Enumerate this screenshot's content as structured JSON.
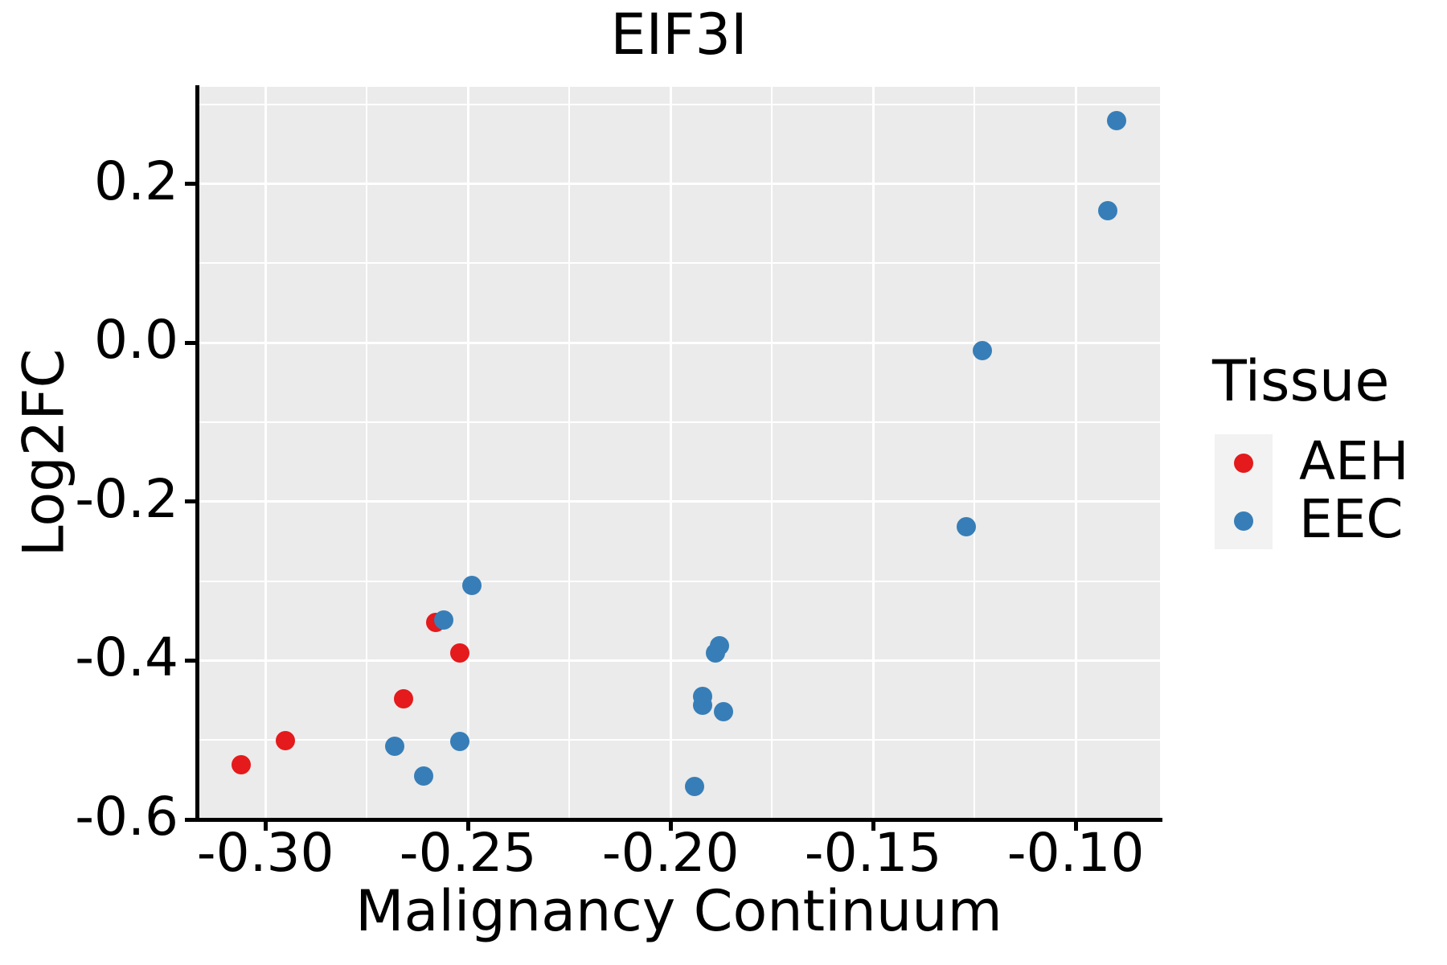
{
  "title": "EIF3I",
  "axes": {
    "x_label": "Malignancy Continuum",
    "y_label": "Log2FC"
  },
  "legend": {
    "title": "Tissue",
    "items": [
      {
        "label": "AEH",
        "color": "#E41A1C"
      },
      {
        "label": "EEC",
        "color": "#377EB8"
      }
    ]
  },
  "style": {
    "panel_bg": "#EBEBEB",
    "grid_color": "#FFFFFF",
    "legend_key_bg": "#F2F2F2",
    "axis_color": "#000000",
    "aeh_color": "#E41A1C",
    "eec_color": "#377EB8"
  },
  "chart_data": {
    "type": "scatter",
    "title": "EIF3I",
    "xlabel": "Malignancy Continuum",
    "ylabel": "Log2FC",
    "xlim": [
      -0.3167,
      -0.0792
    ],
    "ylim": [
      -0.6,
      0.322
    ],
    "grid": true,
    "legend_position": "right",
    "x_major_ticks": [
      -0.3,
      -0.25,
      -0.2,
      -0.15,
      -0.1
    ],
    "x_tick_labels": [
      "-0.30",
      "-0.25",
      "-0.20",
      "-0.15",
      "-0.10"
    ],
    "x_minor_ticks": [
      -0.275,
      -0.225,
      -0.175,
      -0.125
    ],
    "y_major_ticks": [
      0.2,
      0.0,
      -0.2,
      -0.4,
      -0.6
    ],
    "y_tick_labels": [
      "0.2",
      "0.0",
      "-0.2",
      "-0.4",
      "-0.6"
    ],
    "y_minor_ticks": [
      0.3,
      0.1,
      -0.1,
      -0.3,
      -0.5
    ],
    "series": [
      {
        "name": "AEH",
        "color": "#E41A1C",
        "points": [
          [
            -0.306,
            -0.531
          ],
          [
            -0.295,
            -0.501
          ],
          [
            -0.266,
            -0.448
          ],
          [
            -0.258,
            -0.352
          ],
          [
            -0.252,
            -0.39
          ]
        ]
      },
      {
        "name": "EEC",
        "color": "#377EB8",
        "points": [
          [
            -0.268,
            -0.508
          ],
          [
            -0.261,
            -0.545
          ],
          [
            -0.252,
            -0.502
          ],
          [
            -0.256,
            -0.349
          ],
          [
            -0.249,
            -0.305
          ],
          [
            -0.189,
            -0.391
          ],
          [
            -0.188,
            -0.381
          ],
          [
            -0.192,
            -0.445
          ],
          [
            -0.192,
            -0.456
          ],
          [
            -0.187,
            -0.464
          ],
          [
            -0.194,
            -0.559
          ],
          [
            -0.127,
            -0.232
          ],
          [
            -0.123,
            -0.01
          ],
          [
            -0.092,
            0.166
          ],
          [
            -0.09,
            0.279
          ]
        ]
      }
    ]
  }
}
